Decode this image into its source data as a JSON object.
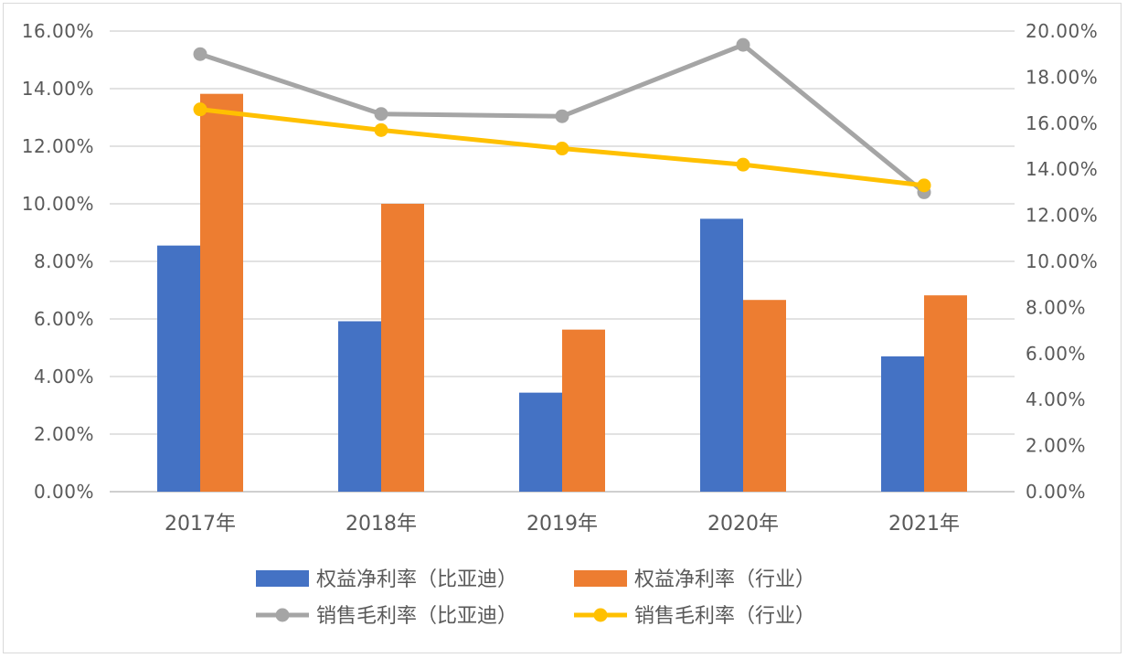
{
  "chart_data": {
    "type": "bar",
    "categories": [
      "2017年",
      "2018年",
      "2019年",
      "2020年",
      "2021年"
    ],
    "y_left": {
      "ylim": [
        0,
        16
      ],
      "ticks": [
        "0.00%",
        "2.00%",
        "4.00%",
        "6.00%",
        "8.00%",
        "10.00%",
        "12.00%",
        "14.00%",
        "16.00%"
      ]
    },
    "y_right": {
      "ylim": [
        0,
        20
      ],
      "ticks": [
        "0.00%",
        "2.00%",
        "4.00%",
        "6.00%",
        "8.00%",
        "10.00%",
        "12.00%",
        "14.00%",
        "16.00%",
        "18.00%",
        "20.00%"
      ]
    },
    "series": [
      {
        "name": "权益净利率（比亚迪）",
        "type": "bar",
        "axis": "left",
        "color": "#4472c4",
        "values": [
          8.55,
          5.92,
          3.44,
          9.48,
          4.7
        ]
      },
      {
        "name": "权益净利率（行业）",
        "type": "bar",
        "axis": "left",
        "color": "#ed7d31",
        "values": [
          13.82,
          10.0,
          5.63,
          6.66,
          6.82
        ]
      },
      {
        "name": "销售毛利率（比亚迪）",
        "type": "line",
        "axis": "right",
        "color": "#a5a5a5",
        "values": [
          19.0,
          16.4,
          16.3,
          19.4,
          13.0
        ]
      },
      {
        "name": "销售毛利率（行业）",
        "type": "line",
        "axis": "right",
        "color": "#ffc000",
        "values": [
          16.6,
          15.7,
          14.9,
          14.2,
          13.3
        ]
      }
    ],
    "grid": true,
    "legend_position": "bottom"
  }
}
